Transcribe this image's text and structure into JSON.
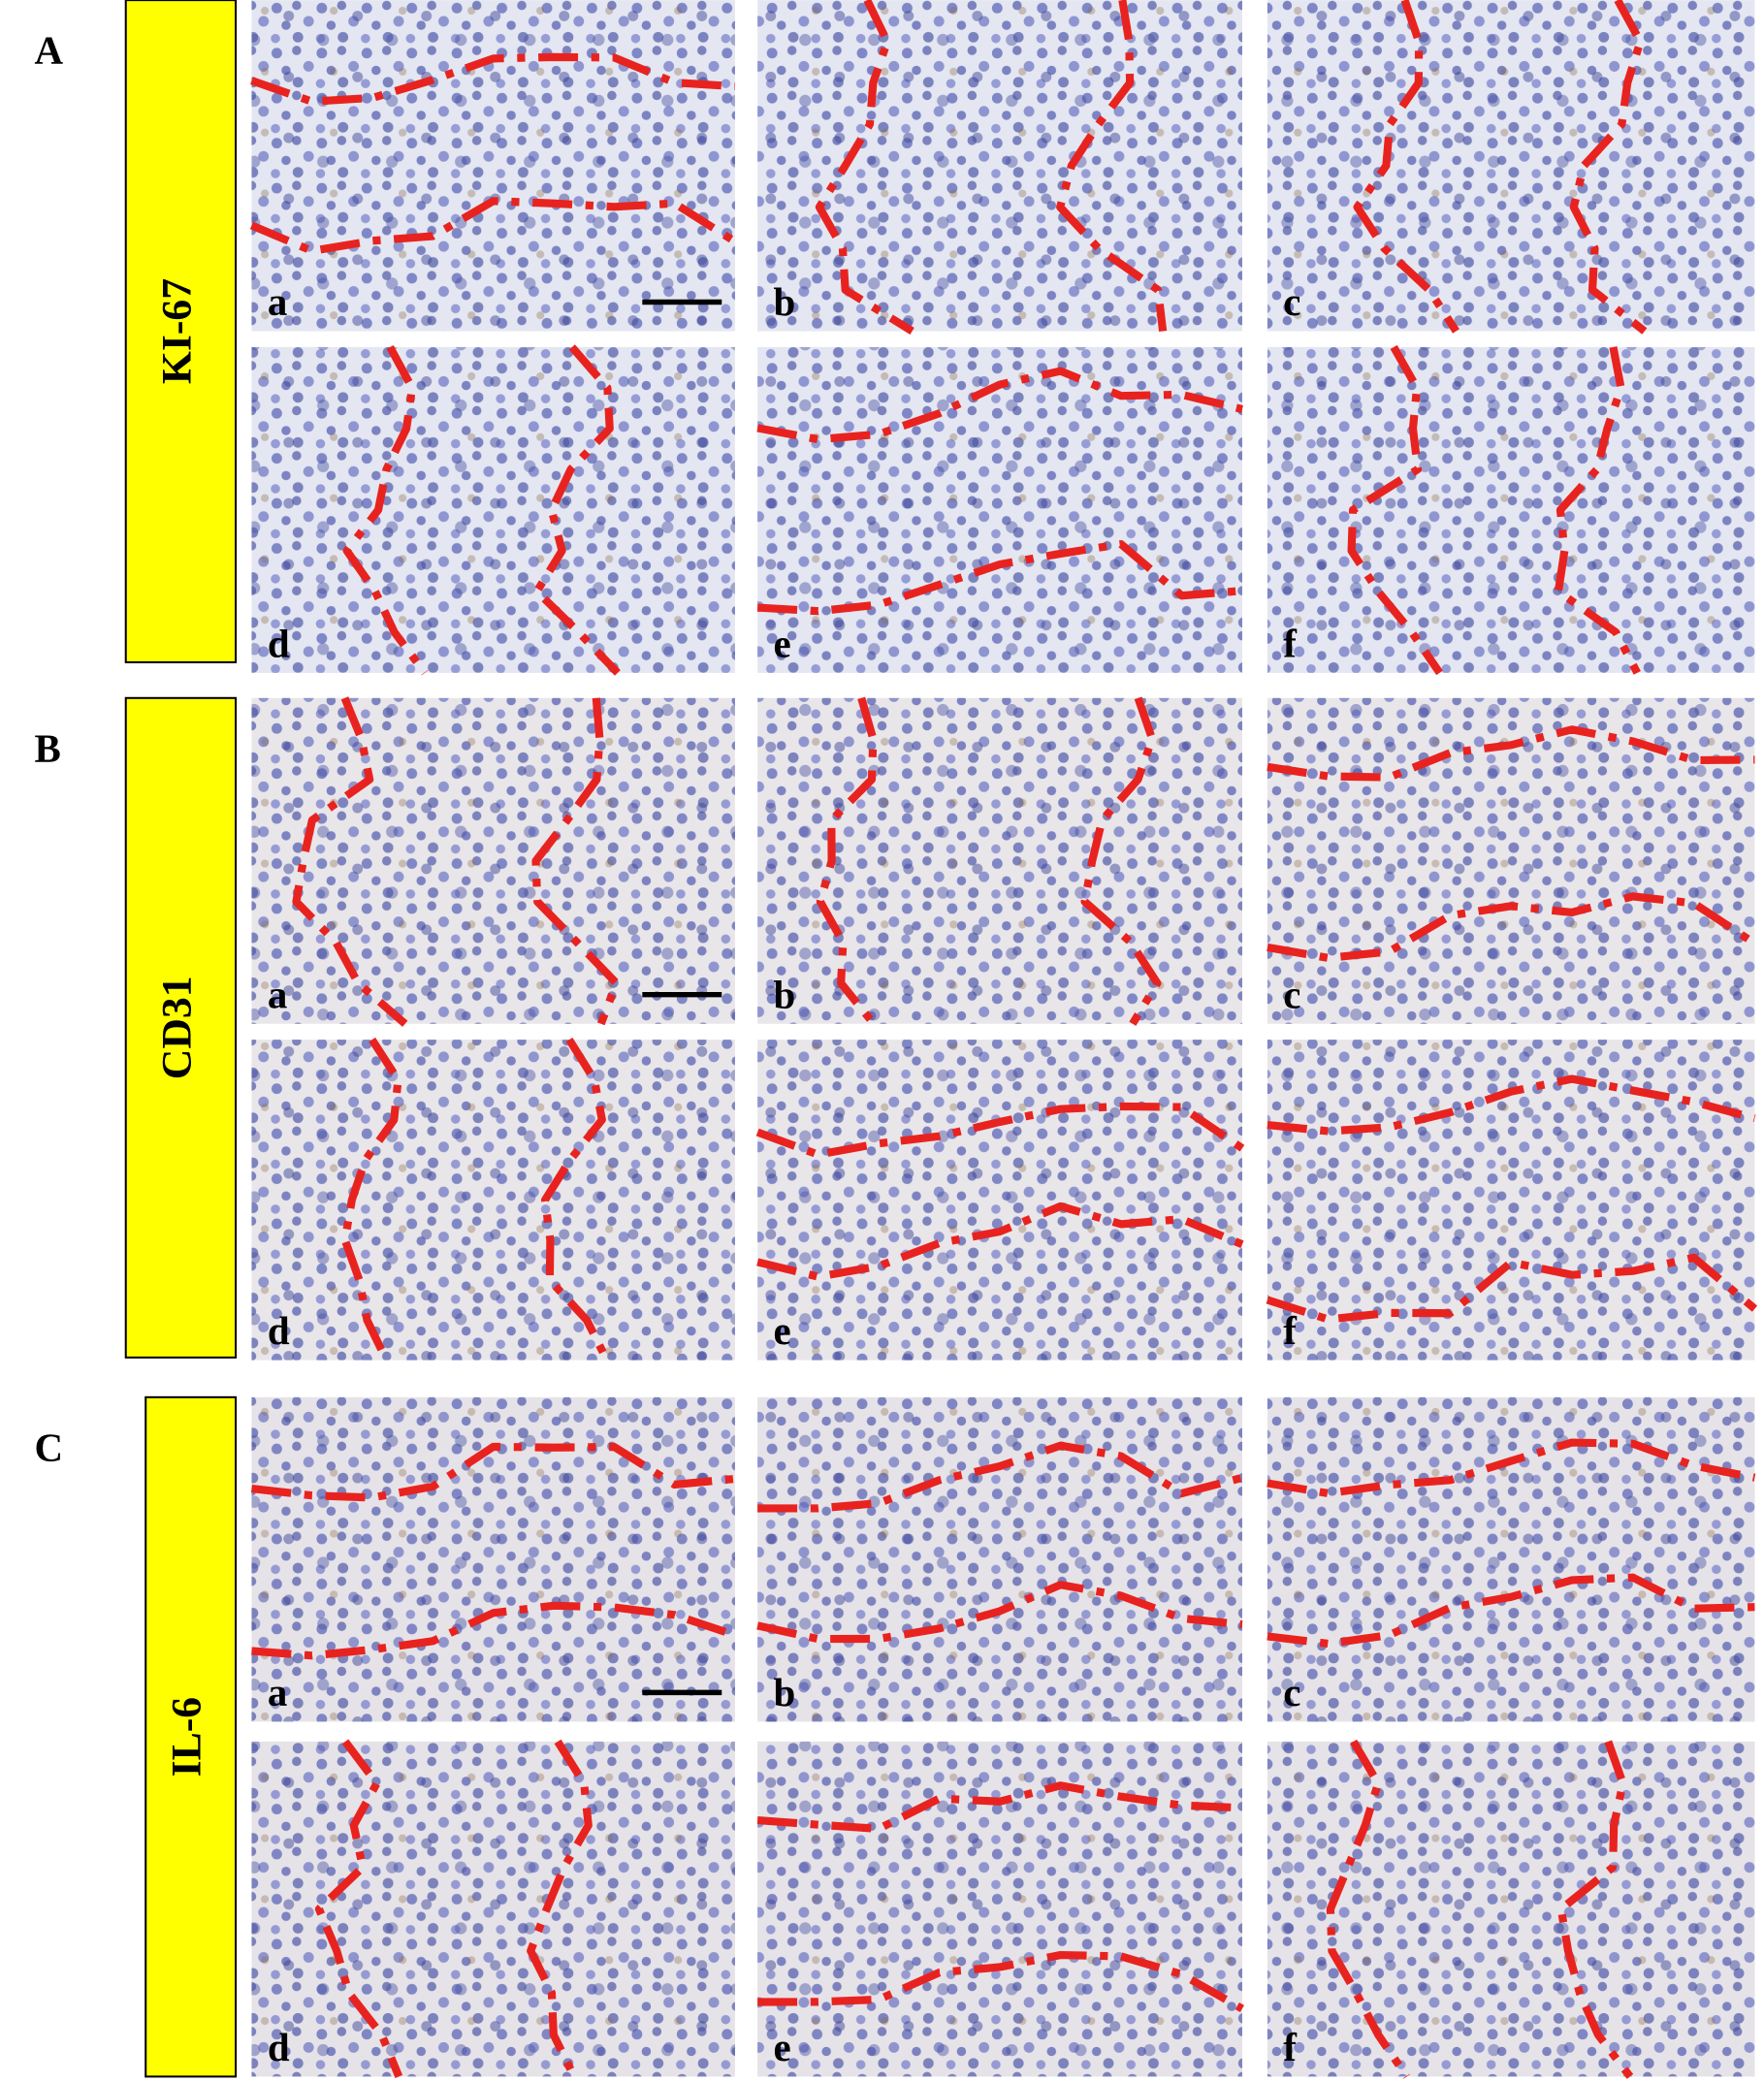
{
  "panels": [
    {
      "letter": "A",
      "label": "KI-67",
      "sublabels": [
        "a",
        "b",
        "c",
        "d",
        "e",
        "f"
      ]
    },
    {
      "letter": "B",
      "label": "CD31",
      "sublabels": [
        "a",
        "b",
        "c",
        "d",
        "e",
        "f"
      ]
    },
    {
      "letter": "C",
      "label": "IL-6",
      "sublabels": [
        "a",
        "b",
        "c",
        "d",
        "e",
        "f"
      ]
    }
  ]
}
